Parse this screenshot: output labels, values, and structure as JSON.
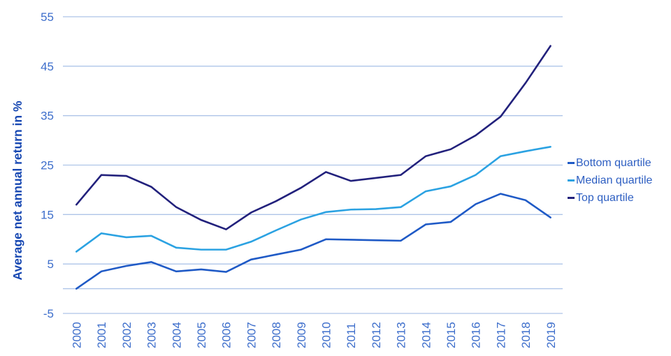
{
  "chart_data": {
    "type": "line",
    "ylabel": "Average net annual return in %",
    "x": [
      "2000",
      "2001",
      "2002",
      "2003",
      "2004",
      "2005",
      "2006",
      "2007",
      "2008",
      "2009",
      "2010",
      "2011",
      "2012",
      "2013",
      "2014",
      "2015",
      "2016",
      "2017",
      "2018",
      "2019"
    ],
    "series": [
      {
        "name": "Bottom quartile",
        "color": "#1f5ac6",
        "values": [
          0,
          3.5,
          4.6,
          5.4,
          3.5,
          3.9,
          3.4,
          5.9,
          6.9,
          7.9,
          10,
          9.9,
          9.8,
          9.7,
          13,
          13.5,
          17.1,
          19.2,
          17.9,
          14.4
        ]
      },
      {
        "name": "Median quartile",
        "color": "#2ba2e2",
        "values": [
          7.5,
          11.2,
          10.4,
          10.7,
          8.3,
          7.9,
          7.9,
          9.5,
          11.8,
          14,
          15.5,
          16,
          16.1,
          16.5,
          19.7,
          20.7,
          23,
          26.8,
          27.8,
          28.7
        ]
      },
      {
        "name": "Top quartile",
        "color": "#22217c",
        "values": [
          17,
          23,
          22.8,
          20.6,
          16.5,
          13.9,
          12,
          15.4,
          17.7,
          20.4,
          23.6,
          21.8,
          22.4,
          23,
          26.8,
          28.2,
          31,
          34.8,
          41.6,
          49.1
        ]
      }
    ],
    "ylim": [
      -5,
      55
    ],
    "yticks": [
      -5,
      5,
      15,
      25,
      35,
      45,
      55
    ],
    "zero_line": true,
    "grid": "horizontal",
    "legend_position": "right"
  },
  "colors": {
    "background": "#ffffff",
    "grid": "#aec4e8",
    "tick_label": "#3d6ecb",
    "axis_title": "#1647b2",
    "legend_text": "#2e5fc2"
  }
}
